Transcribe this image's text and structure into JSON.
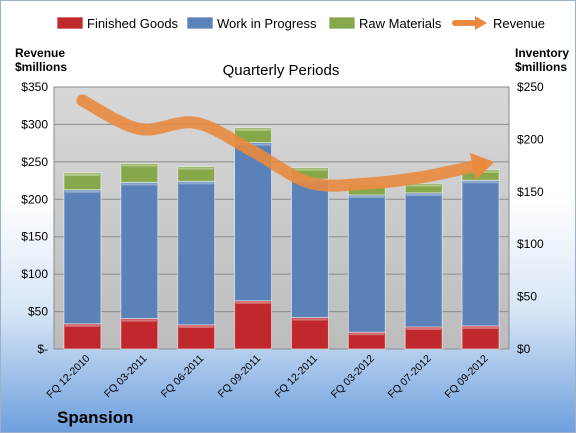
{
  "company": "Spansion",
  "chart_data": {
    "type": "bar",
    "subtitle": "Quarterly Periods",
    "left_axis_label": [
      "Revenue",
      "$millions"
    ],
    "right_axis_label": [
      "Inventory",
      "$millions"
    ],
    "categories": [
      "FQ 12-2010",
      "FQ 03-2011",
      "FQ 06-2011",
      "FQ 09-2011",
      "FQ 12-2011",
      "FQ 03-2012",
      "FQ 07-2012",
      "FQ 09-2012"
    ],
    "left_axis": {
      "min": 0,
      "max": 350,
      "ticks": [
        0,
        50,
        100,
        150,
        200,
        250,
        300,
        350
      ],
      "tick_labels": [
        "$-",
        "$50",
        "$100",
        "$150",
        "$200",
        "$250",
        "$300",
        "$350"
      ]
    },
    "right_axis": {
      "min": 0,
      "max": 250,
      "ticks": [
        0,
        50,
        100,
        150,
        200,
        250
      ],
      "tick_labels": [
        "$0",
        "$50",
        "$100",
        "$150",
        "$200",
        "$250"
      ]
    },
    "grid": true,
    "legend_position": "top",
    "series": [
      {
        "name": "Finished Goods",
        "type": "stacked_bar",
        "axis": "right",
        "color": "#c0282d",
        "values": [
          24,
          29,
          23,
          46,
          30,
          16,
          21,
          22
        ]
      },
      {
        "name": "Work in Progress",
        "type": "stacked_bar",
        "axis": "right",
        "color": "#5a82b8",
        "values": [
          128,
          130,
          137,
          151,
          132,
          131,
          128,
          139
        ]
      },
      {
        "name": "Raw Materials",
        "type": "stacked_bar",
        "axis": "right",
        "color": "#87a84a",
        "values": [
          16,
          18,
          14,
          14,
          11,
          10,
          9,
          10
        ]
      },
      {
        "name": "Revenue",
        "type": "line",
        "axis": "left",
        "color": "#e9893f",
        "values": [
          332,
          294,
          302,
          264,
          222,
          221,
          230,
          246
        ]
      }
    ]
  }
}
